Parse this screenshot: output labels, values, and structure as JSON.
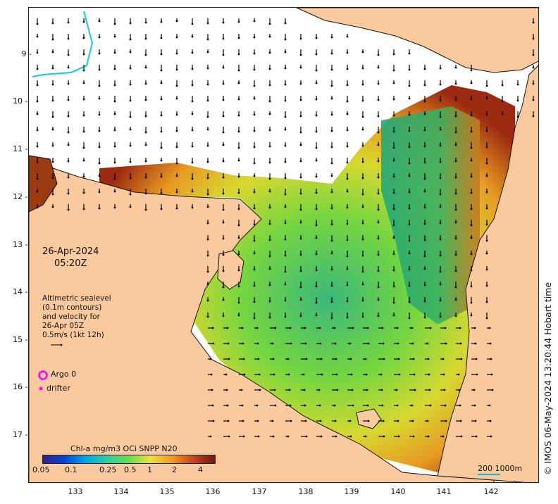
{
  "map": {
    "date_line1": "26-Apr-2024",
    "date_line2": "05:20Z",
    "altimetry_lines": [
      "Altimetric sealevel",
      "(0.1m contours)",
      "and velocity for",
      "26-Apr 05Z",
      "0.5m/s (1kt 12h)"
    ],
    "legend": {
      "argo": "Argo 0",
      "drifter": "drifter"
    },
    "colorbar": {
      "title": "Chl-a mg/m3 OCi SNPP N20",
      "labels": [
        "0.05",
        "0.1",
        "0.25",
        "0.5",
        "1",
        "2",
        "4"
      ],
      "colors": [
        "#3a1b8c",
        "#0047d6",
        "#00a6e8",
        "#2fd0a0",
        "#66e04a",
        "#f1e034",
        "#f29b1f",
        "#c8431a",
        "#6b1a0e"
      ]
    },
    "scale_label": "200  1000m",
    "credit": "© IMOS 06-May-2024 13:20:44 Hobart time",
    "lat_ticks": [
      "9",
      "10",
      "11",
      "12",
      "13",
      "14",
      "15",
      "16",
      "17"
    ],
    "lon_ticks": [
      "133",
      "134",
      "135",
      "136",
      "137",
      "138",
      "139",
      "140",
      "141",
      "142"
    ],
    "colors": {
      "land": "#fbc99e",
      "coast": "#111111",
      "arrows": "#000000",
      "argo_marker": "#ff00ff",
      "contour_line": "#19c8d8"
    }
  }
}
